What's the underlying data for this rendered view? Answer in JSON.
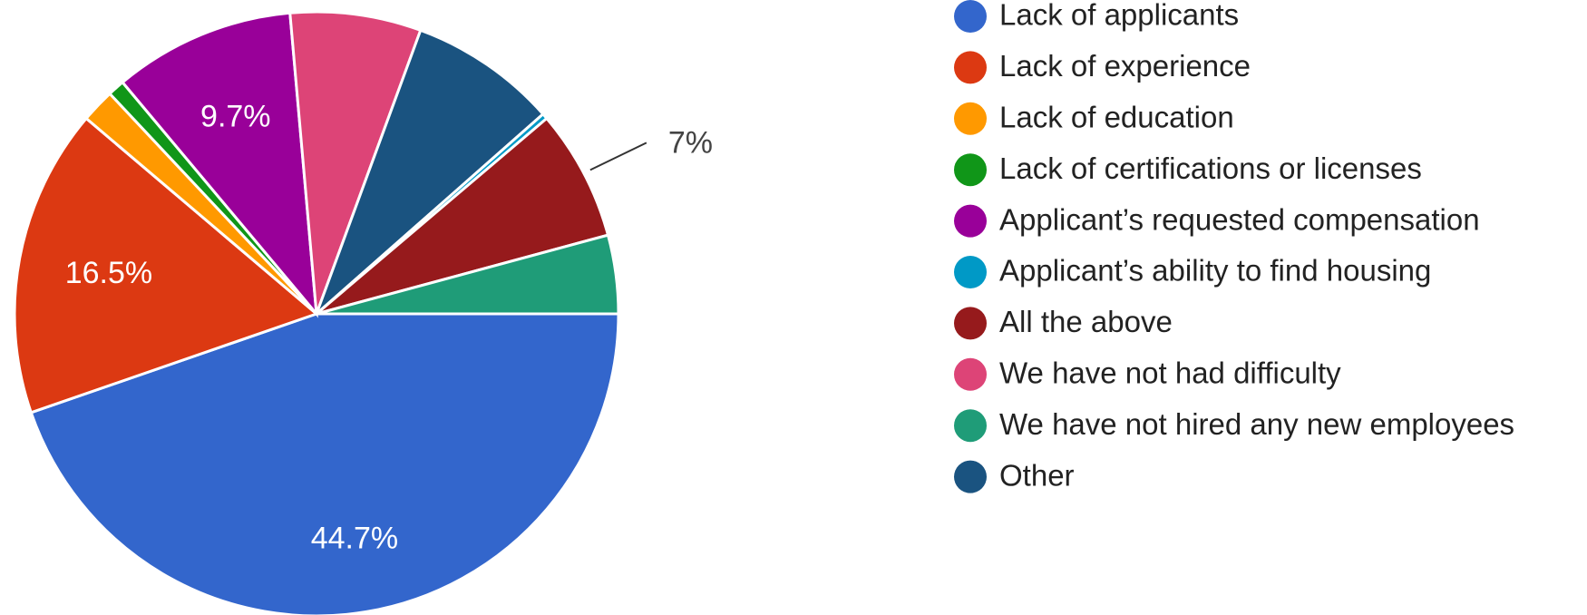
{
  "chart_data": {
    "type": "pie",
    "categories": [
      "Lack of applicants",
      "Lack of experience",
      "Lack of education",
      "Lack of certifications or licenses",
      "Applicant’s requested compensation",
      "Applicant’s ability to find housing",
      "All the above",
      "We have not had difficulty",
      "We have not hired any new employees",
      "Other"
    ],
    "values": [
      44.7,
      16.5,
      1.8,
      0.9,
      9.7,
      0.3,
      7,
      7,
      4.2,
      7.9
    ],
    "value_labels": [
      "44.7%",
      "16.5%",
      null,
      null,
      "9.7%",
      null,
      "7%",
      null,
      null,
      null
    ],
    "colors": [
      "#3366cc",
      "#dc3912",
      "#ff9900",
      "#109618",
      "#990099",
      "#0099c6",
      "#961a1c",
      "#dd4477",
      "#1f9c78",
      "#1a5380"
    ],
    "legend": "right"
  }
}
